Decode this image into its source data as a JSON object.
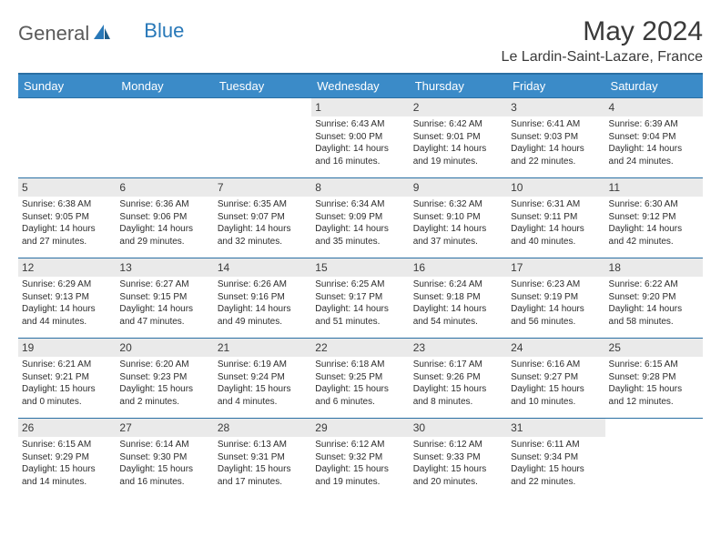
{
  "logo": {
    "part1": "General",
    "part2": "Blue"
  },
  "title": "May 2024",
  "location": "Le Lardin-Saint-Lazare, France",
  "colors": {
    "header_bg": "#3b8bc8",
    "header_border": "#2a6fa3",
    "daynum_bg": "#eaeaea",
    "logo_gray": "#5a5a5a",
    "logo_blue": "#2878b8"
  },
  "weekdays": [
    "Sunday",
    "Monday",
    "Tuesday",
    "Wednesday",
    "Thursday",
    "Friday",
    "Saturday"
  ],
  "weeks": [
    [
      null,
      null,
      null,
      {
        "n": "1",
        "sr": "6:43 AM",
        "ss": "9:00 PM",
        "dl": "14 hours and 16 minutes."
      },
      {
        "n": "2",
        "sr": "6:42 AM",
        "ss": "9:01 PM",
        "dl": "14 hours and 19 minutes."
      },
      {
        "n": "3",
        "sr": "6:41 AM",
        "ss": "9:03 PM",
        "dl": "14 hours and 22 minutes."
      },
      {
        "n": "4",
        "sr": "6:39 AM",
        "ss": "9:04 PM",
        "dl": "14 hours and 24 minutes."
      }
    ],
    [
      {
        "n": "5",
        "sr": "6:38 AM",
        "ss": "9:05 PM",
        "dl": "14 hours and 27 minutes."
      },
      {
        "n": "6",
        "sr": "6:36 AM",
        "ss": "9:06 PM",
        "dl": "14 hours and 29 minutes."
      },
      {
        "n": "7",
        "sr": "6:35 AM",
        "ss": "9:07 PM",
        "dl": "14 hours and 32 minutes."
      },
      {
        "n": "8",
        "sr": "6:34 AM",
        "ss": "9:09 PM",
        "dl": "14 hours and 35 minutes."
      },
      {
        "n": "9",
        "sr": "6:32 AM",
        "ss": "9:10 PM",
        "dl": "14 hours and 37 minutes."
      },
      {
        "n": "10",
        "sr": "6:31 AM",
        "ss": "9:11 PM",
        "dl": "14 hours and 40 minutes."
      },
      {
        "n": "11",
        "sr": "6:30 AM",
        "ss": "9:12 PM",
        "dl": "14 hours and 42 minutes."
      }
    ],
    [
      {
        "n": "12",
        "sr": "6:29 AM",
        "ss": "9:13 PM",
        "dl": "14 hours and 44 minutes."
      },
      {
        "n": "13",
        "sr": "6:27 AM",
        "ss": "9:15 PM",
        "dl": "14 hours and 47 minutes."
      },
      {
        "n": "14",
        "sr": "6:26 AM",
        "ss": "9:16 PM",
        "dl": "14 hours and 49 minutes."
      },
      {
        "n": "15",
        "sr": "6:25 AM",
        "ss": "9:17 PM",
        "dl": "14 hours and 51 minutes."
      },
      {
        "n": "16",
        "sr": "6:24 AM",
        "ss": "9:18 PM",
        "dl": "14 hours and 54 minutes."
      },
      {
        "n": "17",
        "sr": "6:23 AM",
        "ss": "9:19 PM",
        "dl": "14 hours and 56 minutes."
      },
      {
        "n": "18",
        "sr": "6:22 AM",
        "ss": "9:20 PM",
        "dl": "14 hours and 58 minutes."
      }
    ],
    [
      {
        "n": "19",
        "sr": "6:21 AM",
        "ss": "9:21 PM",
        "dl": "15 hours and 0 minutes."
      },
      {
        "n": "20",
        "sr": "6:20 AM",
        "ss": "9:23 PM",
        "dl": "15 hours and 2 minutes."
      },
      {
        "n": "21",
        "sr": "6:19 AM",
        "ss": "9:24 PM",
        "dl": "15 hours and 4 minutes."
      },
      {
        "n": "22",
        "sr": "6:18 AM",
        "ss": "9:25 PM",
        "dl": "15 hours and 6 minutes."
      },
      {
        "n": "23",
        "sr": "6:17 AM",
        "ss": "9:26 PM",
        "dl": "15 hours and 8 minutes."
      },
      {
        "n": "24",
        "sr": "6:16 AM",
        "ss": "9:27 PM",
        "dl": "15 hours and 10 minutes."
      },
      {
        "n": "25",
        "sr": "6:15 AM",
        "ss": "9:28 PM",
        "dl": "15 hours and 12 minutes."
      }
    ],
    [
      {
        "n": "26",
        "sr": "6:15 AM",
        "ss": "9:29 PM",
        "dl": "15 hours and 14 minutes."
      },
      {
        "n": "27",
        "sr": "6:14 AM",
        "ss": "9:30 PM",
        "dl": "15 hours and 16 minutes."
      },
      {
        "n": "28",
        "sr": "6:13 AM",
        "ss": "9:31 PM",
        "dl": "15 hours and 17 minutes."
      },
      {
        "n": "29",
        "sr": "6:12 AM",
        "ss": "9:32 PM",
        "dl": "15 hours and 19 minutes."
      },
      {
        "n": "30",
        "sr": "6:12 AM",
        "ss": "9:33 PM",
        "dl": "15 hours and 20 minutes."
      },
      {
        "n": "31",
        "sr": "6:11 AM",
        "ss": "9:34 PM",
        "dl": "15 hours and 22 minutes."
      },
      null
    ]
  ],
  "labels": {
    "sunrise": "Sunrise:",
    "sunset": "Sunset:",
    "daylight": "Daylight:"
  }
}
